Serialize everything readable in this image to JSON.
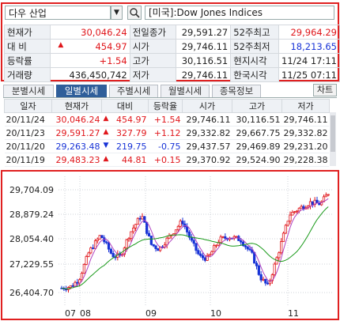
{
  "symbol": {
    "name": "다우 산업",
    "market_name": "[미국]:Dow Jones Indices",
    "dropdown_glyph": "▼"
  },
  "quote": {
    "current_label": "현재가",
    "current_value": "30,046.24",
    "change_label": "대 비",
    "change_arrow": "▲",
    "change_value": "454.97",
    "rate_label": "등락률",
    "rate_value": "+1.54",
    "volume_label": "거래량",
    "volume_value": "436,450,742",
    "prev_close_label": "전일종가",
    "prev_close_value": "29,591.27",
    "open_label": "시가",
    "open_value": "29,746.11",
    "high_label": "고가",
    "high_value": "30,116.51",
    "low_label": "저가",
    "low_value": "29,746.11",
    "w52_high_label": "52주최고",
    "w52_high_value": "29,964.29",
    "w52_low_label": "52주최저",
    "w52_low_value": "18,213.65",
    "local_time_label": "현지시각",
    "local_time_value": "11/24 17:11",
    "korea_time_label": "한국시각",
    "korea_time_value": "11/25 07:11"
  },
  "tabs": [
    "분별시세",
    "일별시세",
    "주별시세",
    "월별시세",
    "종목정보"
  ],
  "chart_button": "차트",
  "daily_table": {
    "headers": [
      "일자",
      "현재가",
      "대비",
      "등락율",
      "시가",
      "고가",
      "저가"
    ],
    "rows": [
      {
        "date": "20/11/24",
        "close": "30,046.24",
        "arrow": "▲",
        "change": "454.97",
        "rate": "+1.54",
        "open": "29,746.11",
        "high": "30,116.51",
        "low": "29,746.11",
        "dir": "up"
      },
      {
        "date": "20/11/23",
        "close": "29,591.27",
        "arrow": "▲",
        "change": "327.79",
        "rate": "+1.12",
        "open": "29,332.82",
        "high": "29,667.75",
        "low": "29,332.82",
        "dir": "up"
      },
      {
        "date": "20/11/20",
        "close": "29,263.48",
        "arrow": "▼",
        "change": "219.75",
        "rate": "-0.75",
        "open": "29,437.57",
        "high": "29,469.89",
        "low": "29,231.20",
        "dir": "down"
      },
      {
        "date": "20/11/19",
        "close": "29,483.23",
        "arrow": "▲",
        "change": "44.81",
        "rate": "+0.15",
        "open": "29,370.92",
        "high": "29,524.90",
        "low": "29,228.38",
        "dir": "up"
      }
    ]
  },
  "chart_data": {
    "type": "candlestick",
    "y_ticks": [
      "29,704.09",
      "28,879.24",
      "28,054.40",
      "27,229.55",
      "26,404.70"
    ],
    "y_tick_values": [
      29704.09,
      28879.24,
      28054.4,
      27229.55,
      26404.7
    ],
    "x_ticks": [
      "07",
      "08",
      "09",
      "10",
      "11"
    ],
    "colors": {
      "up": "#e0161b",
      "down": "#1732d6",
      "ma_short": "#b040c0",
      "ma_long": "#1a9a1a"
    }
  }
}
